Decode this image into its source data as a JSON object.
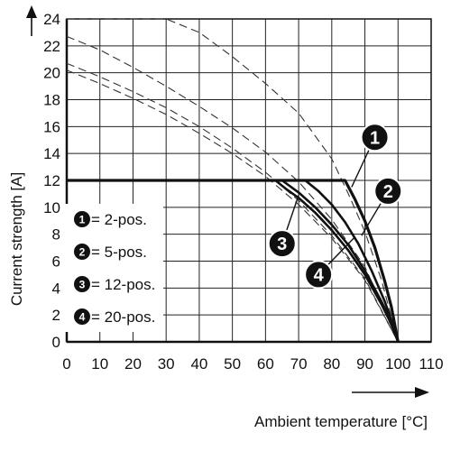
{
  "chart_data": {
    "type": "line",
    "title": "",
    "xlabel": "Ambient temperature [°C]",
    "ylabel": "Current strength [A]",
    "xlim": [
      0,
      110
    ],
    "ylim": [
      0,
      24
    ],
    "x_ticks": [
      "0",
      "10",
      "20",
      "30",
      "40",
      "50",
      "60",
      "70",
      "80",
      "90",
      "100",
      "110"
    ],
    "y_ticks": [
      "0",
      "2",
      "4",
      "6",
      "8",
      "10",
      "12",
      "14",
      "16",
      "18",
      "20",
      "22",
      "24"
    ],
    "grid": true,
    "legend_placement": "bottom-left",
    "legend": [
      {
        "badge": "1",
        "text": "= 2-pos."
      },
      {
        "badge": "2",
        "text": "= 5-pos."
      },
      {
        "badge": "3",
        "text": "= 12-pos."
      },
      {
        "badge": "4",
        "text": "= 20-pos."
      }
    ],
    "series": [
      {
        "badge": "1",
        "style": "solid",
        "x": [
          0,
          84,
          87,
          90,
          93,
          96,
          98,
          100
        ],
        "y": [
          12,
          12,
          10.6,
          9,
          7,
          4.5,
          2.6,
          0
        ]
      },
      {
        "badge": "2",
        "style": "solid",
        "x": [
          0,
          72,
          76,
          80,
          84,
          88,
          92,
          96,
          98,
          100
        ],
        "y": [
          12,
          12,
          11.2,
          10.2,
          8.9,
          7.3,
          5.3,
          3,
          1.6,
          0
        ]
      },
      {
        "badge": "3",
        "style": "solid",
        "x": [
          0,
          63,
          66,
          70,
          75,
          80,
          85,
          90,
          95,
          98,
          100
        ],
        "y": [
          12,
          12,
          11.4,
          10.7,
          9.6,
          8.3,
          6.8,
          5,
          2.8,
          1.3,
          0
        ]
      },
      {
        "badge": "4",
        "style": "solid",
        "x": [
          0,
          65,
          70,
          75,
          80,
          85,
          90,
          95,
          98,
          100
        ],
        "y": [
          12,
          12,
          11.1,
          10,
          8.7,
          7.2,
          5.3,
          3,
          1.5,
          0
        ]
      }
    ],
    "dashed_curves": [
      {
        "x": [
          0,
          20,
          30,
          40,
          50,
          60,
          70,
          80,
          85,
          90,
          95,
          100
        ],
        "y": [
          25.6,
          25.6,
          24.4,
          23,
          21.2,
          19.2,
          17,
          13.6,
          11,
          8.2,
          4.6,
          0
        ]
      },
      {
        "x": [
          0,
          10,
          20,
          30,
          40,
          50,
          60,
          70,
          80,
          90,
          100
        ],
        "y": [
          22.7,
          21.7,
          20.4,
          19,
          17.5,
          15.9,
          14.1,
          11.9,
          9.1,
          5.6,
          0
        ]
      },
      {
        "x": [
          0,
          10,
          20,
          30,
          40,
          50,
          60,
          70,
          80,
          90,
          100
        ],
        "y": [
          20.7,
          19.7,
          18.6,
          17.4,
          16,
          14.4,
          12.6,
          10.5,
          7.9,
          4.7,
          0
        ]
      },
      {
        "x": [
          0,
          10,
          20,
          30,
          40,
          50,
          60,
          70,
          80,
          90,
          100
        ],
        "y": [
          20.2,
          19.2,
          18.1,
          16.9,
          15.5,
          14,
          12.3,
          10.2,
          7.7,
          4.6,
          0
        ]
      }
    ],
    "callouts": [
      {
        "badge": "1",
        "anchor": [
          86,
          11.5
        ],
        "label_at": [
          93,
          15.2
        ]
      },
      {
        "badge": "2",
        "anchor": [
          89,
          7.9
        ],
        "label_at": [
          97,
          11.2
        ]
      },
      {
        "badge": "3",
        "anchor": [
          70,
          10.9
        ],
        "label_at": [
          65,
          7.3
        ]
      },
      {
        "badge": "4",
        "anchor": [
          87,
          7.8
        ],
        "label_at": [
          76,
          5
        ]
      }
    ]
  }
}
